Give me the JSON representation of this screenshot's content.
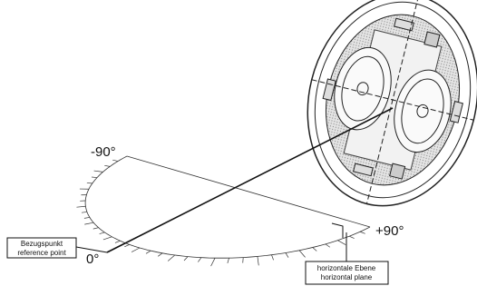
{
  "labels": {
    "minus_90": "-90°",
    "plus_90": "+90°",
    "zero": "0°"
  },
  "reference_point": {
    "de": "Bezugspunkt",
    "en": "reference point"
  },
  "horizontal_plane": {
    "de": "horizontale Ebene",
    "en": "horizontal plane"
  }
}
